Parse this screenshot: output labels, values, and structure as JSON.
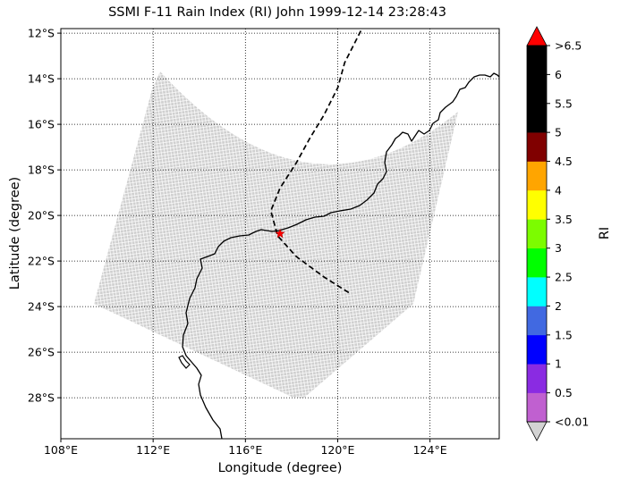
{
  "title": "SSMI F-11 Rain Index (RI) John 1999-12-14 23:28:43",
  "xlabel": "Longitude (degree)",
  "ylabel": "Latitude (degree)",
  "colorbar_label": "RI",
  "x_ticks": [
    "108°E",
    "112°E",
    "116°E",
    "120°E",
    "124°E"
  ],
  "y_ticks": [
    "12°S",
    "14°S",
    "16°S",
    "18°S",
    "20°S",
    "22°S",
    "24°S",
    "26°S",
    "28°S"
  ],
  "colorbar_ticks": [
    "<0.01",
    "0.5",
    "1",
    "1.5",
    "2",
    "2.5",
    "3",
    "3.5",
    "4",
    "4.5",
    "5",
    "5.5",
    "6",
    ">6.5"
  ],
  "colorbar_colors": [
    "#c060d0",
    "#8a2be2",
    "#0000ff",
    "#4169e1",
    "#00ffff",
    "#00ff00",
    "#7cfc00",
    "#ffff00",
    "#ffa500",
    "#800000",
    "#000000",
    "#000000",
    "#000000"
  ],
  "colorbar_under_color": "#d3d3d3",
  "colorbar_over_color": "#ff0000",
  "chart_data": {
    "type": "map",
    "projection": "platecarree",
    "lon_range": [
      108,
      127
    ],
    "lat_range": [
      -29.8,
      -11.8
    ],
    "grid": true,
    "swath_color": "#d3d3d3",
    "storm_track": [
      [
        121.0,
        -11.9
      ],
      [
        120.3,
        -13.3
      ],
      [
        120.0,
        -14.4
      ],
      [
        119.4,
        -15.6
      ],
      [
        118.8,
        -16.6
      ],
      [
        118.2,
        -17.7
      ],
      [
        117.5,
        -18.8
      ],
      [
        117.1,
        -19.8
      ],
      [
        117.4,
        -20.9
      ],
      [
        118.2,
        -21.8
      ],
      [
        119.4,
        -22.7
      ],
      [
        120.5,
        -23.4
      ]
    ],
    "storm_position": [
      117.5,
      -20.8
    ]
  }
}
